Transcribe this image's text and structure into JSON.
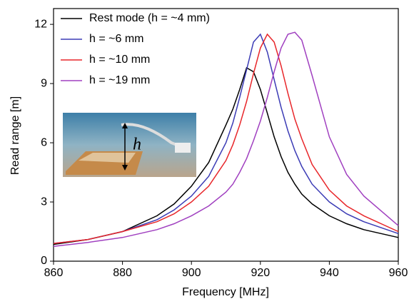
{
  "chart_data": {
    "type": "line",
    "xlabel": "Frequency [MHz]",
    "ylabel": "Read range [m]",
    "inset_label": "h",
    "x": [
      860,
      870,
      880,
      890,
      895,
      900,
      905,
      910,
      912,
      914,
      916,
      918,
      920,
      922,
      924,
      926,
      928,
      930,
      932,
      935,
      940,
      945,
      950,
      960
    ],
    "series": [
      {
        "name": "Rest mode (h = ~4 mm)",
        "color": "#000000",
        "values": [
          0.85,
          1.1,
          1.5,
          2.3,
          2.9,
          3.8,
          5.0,
          6.9,
          7.7,
          8.7,
          9.8,
          9.6,
          8.7,
          7.5,
          6.3,
          5.3,
          4.5,
          3.9,
          3.4,
          2.9,
          2.3,
          1.9,
          1.6,
          1.2
        ]
      },
      {
        "name": "h = ~6 mm",
        "color": "#3b3bb5",
        "values": [
          0.9,
          1.1,
          1.5,
          2.1,
          2.6,
          3.3,
          4.3,
          6.0,
          7.0,
          8.3,
          9.7,
          11.1,
          11.5,
          10.6,
          9.2,
          7.8,
          6.6,
          5.6,
          4.8,
          3.9,
          3.0,
          2.4,
          2.0,
          1.4
        ]
      },
      {
        "name": "h = ~10 mm",
        "color": "#e8262a",
        "values": [
          0.9,
          1.1,
          1.5,
          2.0,
          2.4,
          3.0,
          3.8,
          5.1,
          5.9,
          6.9,
          8.1,
          9.5,
          10.8,
          11.5,
          11.1,
          9.9,
          8.5,
          7.2,
          6.2,
          4.9,
          3.6,
          2.8,
          2.3,
          1.5
        ]
      },
      {
        "name": "h = ~19 mm",
        "color": "#a040c0",
        "values": [
          0.75,
          0.95,
          1.2,
          1.6,
          1.9,
          2.3,
          2.8,
          3.5,
          3.9,
          4.5,
          5.2,
          6.1,
          7.1,
          8.3,
          9.6,
          10.8,
          11.5,
          11.6,
          11.2,
          9.4,
          6.3,
          4.4,
          3.3,
          1.8
        ]
      }
    ],
    "xlim": [
      860,
      960
    ],
    "xticks": [
      860,
      880,
      900,
      920,
      940,
      960
    ],
    "ylim": [
      0,
      12.8
    ],
    "yticks": [
      0,
      3,
      6,
      9,
      12
    ],
    "legend": "upper left"
  }
}
